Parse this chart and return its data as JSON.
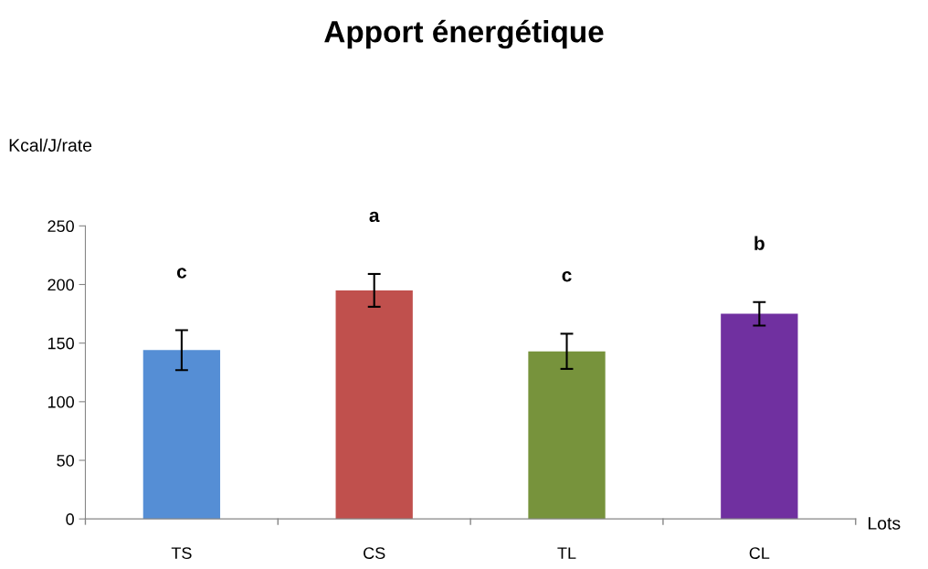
{
  "chart_data": {
    "type": "bar",
    "title": "Apport énergétique",
    "xlabel": "Lots",
    "ylabel": "Kcal/J/rate",
    "categories": [
      "TS",
      "CS",
      "TL",
      "CL"
    ],
    "values": [
      144,
      195,
      143,
      175
    ],
    "colors": [
      "#558ed5",
      "#c0504d",
      "#77933c",
      "#7030a0"
    ],
    "errors": [
      17,
      14,
      15,
      10
    ],
    "ylim": [
      0,
      250
    ],
    "yticks": [
      0,
      50,
      100,
      150,
      200,
      250
    ],
    "grid": false,
    "legend": false,
    "annotations": [
      "c",
      "a",
      "c",
      "b"
    ]
  }
}
